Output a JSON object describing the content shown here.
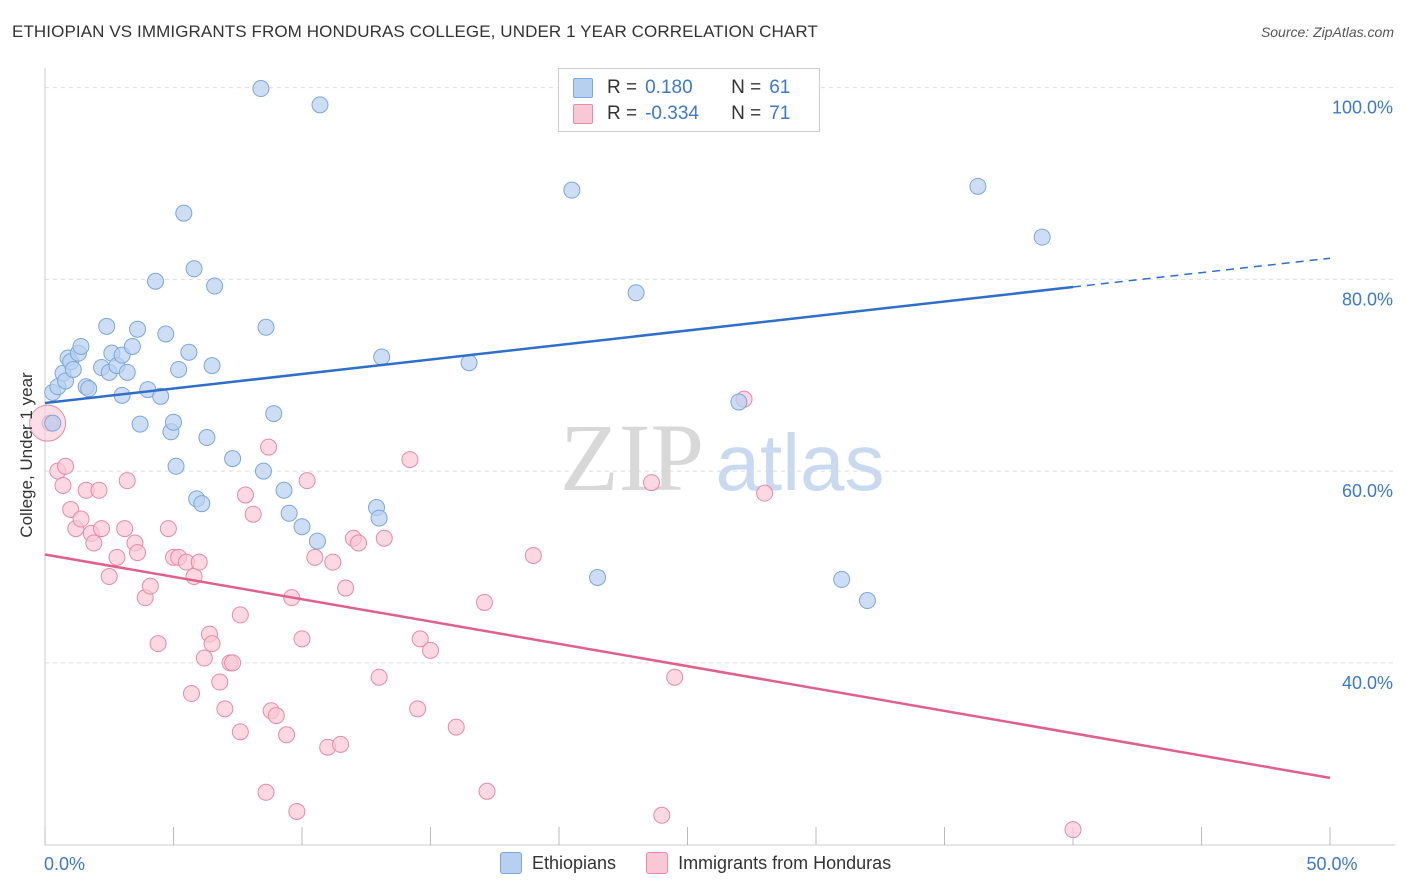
{
  "title": "ETHIOPIAN VS IMMIGRANTS FROM HONDURAS COLLEGE, UNDER 1 YEAR CORRELATION CHART",
  "source": "Source: ZipAtlas.com",
  "watermark": {
    "zip": "ZIP",
    "atlas": "atlas"
  },
  "colors": {
    "blue_fill": "#b8d0f0",
    "blue_stroke": "#7aa7de",
    "blue_line": "#2f6fca",
    "pink_fill": "#f9c8d6",
    "pink_stroke": "#e88aa8",
    "pink_line": "#e0608a",
    "axis_label": "#3b78d0",
    "grid": "#dddddd"
  },
  "legend": {
    "rows": [
      {
        "r_label": "R =",
        "r_value": "0.180",
        "n_label": "N =",
        "n_value": "61"
      },
      {
        "r_label": "R =",
        "r_value": "-0.334",
        "n_label": "N =",
        "n_value": "71"
      }
    ]
  },
  "bottom_legend": {
    "series1": "Ethiopians",
    "series2": "Immigrants from Honduras"
  },
  "chart_data": {
    "type": "scatter",
    "title": "ETHIOPIAN VS IMMIGRANTS FROM HONDURAS COLLEGE, UNDER 1 YEAR CORRELATION CHART",
    "xlabel": "",
    "ylabel": "College, Under 1 year",
    "xlim": [
      0,
      50
    ],
    "ylim": [
      21,
      101
    ],
    "x_tick_labels": [
      "0.0%",
      "50.0%"
    ],
    "y_ticks": [
      40,
      60,
      80,
      100
    ],
    "y_tick_labels": [
      "40.0%",
      "60.0%",
      "80.0%",
      "100.0%"
    ],
    "series": [
      {
        "name": "Ethiopians",
        "r": 0.18,
        "n": 61,
        "trend": {
          "x0": 0,
          "y0": 67.1,
          "x1": 40,
          "y1": 79.2,
          "dash_to_x": 50,
          "dash_to_y": 82.2
        },
        "points": [
          [
            0.3,
            65.0
          ],
          [
            0.3,
            68.2
          ],
          [
            0.5,
            68.8
          ],
          [
            0.7,
            70.2
          ],
          [
            0.8,
            69.4
          ],
          [
            0.9,
            71.8
          ],
          [
            1.0,
            71.4
          ],
          [
            1.1,
            70.6
          ],
          [
            1.3,
            72.3
          ],
          [
            1.4,
            73.0
          ],
          [
            1.6,
            68.8
          ],
          [
            1.7,
            68.6
          ],
          [
            2.2,
            70.8
          ],
          [
            2.4,
            75.1
          ],
          [
            2.5,
            70.3
          ],
          [
            2.6,
            72.3
          ],
          [
            2.8,
            71.0
          ],
          [
            3.0,
            72.1
          ],
          [
            3.0,
            67.9
          ],
          [
            3.2,
            70.3
          ],
          [
            3.4,
            73.0
          ],
          [
            3.6,
            74.8
          ],
          [
            3.7,
            64.9
          ],
          [
            4.0,
            68.5
          ],
          [
            4.3,
            79.8
          ],
          [
            4.5,
            67.8
          ],
          [
            4.7,
            74.3
          ],
          [
            4.9,
            64.1
          ],
          [
            5.0,
            65.1
          ],
          [
            5.1,
            60.5
          ],
          [
            5.2,
            70.6
          ],
          [
            5.4,
            86.9
          ],
          [
            5.6,
            72.4
          ],
          [
            5.8,
            81.1
          ],
          [
            5.9,
            57.1
          ],
          [
            6.1,
            56.6
          ],
          [
            6.3,
            63.5
          ],
          [
            6.5,
            71.0
          ],
          [
            6.6,
            79.3
          ],
          [
            7.3,
            61.3
          ],
          [
            8.5,
            60.0
          ],
          [
            8.6,
            75.0
          ],
          [
            8.9,
            66.0
          ],
          [
            9.3,
            58.0
          ],
          [
            9.5,
            55.6
          ],
          [
            10.0,
            54.2
          ],
          [
            10.6,
            52.7
          ],
          [
            10.7,
            98.2
          ],
          [
            12.9,
            56.2
          ],
          [
            13.0,
            55.1
          ],
          [
            13.1,
            71.9
          ],
          [
            16.5,
            71.3
          ],
          [
            20.5,
            89.3
          ],
          [
            21.5,
            48.9
          ],
          [
            23.0,
            78.6
          ],
          [
            27.0,
            67.2
          ],
          [
            31.0,
            48.7
          ],
          [
            32.0,
            46.5
          ],
          [
            36.3,
            89.7
          ],
          [
            38.8,
            84.4
          ],
          [
            8.4,
            99.9
          ]
        ]
      },
      {
        "name": "Immigrants from Honduras",
        "r": -0.334,
        "n": 71,
        "trend": {
          "x0": 0,
          "y0": 51.3,
          "x1": 50,
          "y1": 28.0
        },
        "points": [
          [
            0.2,
            65.0
          ],
          [
            0.5,
            60.0
          ],
          [
            0.7,
            58.5
          ],
          [
            0.8,
            60.5
          ],
          [
            1.0,
            56.0
          ],
          [
            1.2,
            54.0
          ],
          [
            1.4,
            55.0
          ],
          [
            1.6,
            58.0
          ],
          [
            1.8,
            53.5
          ],
          [
            1.9,
            52.5
          ],
          [
            2.1,
            58.0
          ],
          [
            2.2,
            54.0
          ],
          [
            2.5,
            49.0
          ],
          [
            2.8,
            51.0
          ],
          [
            3.1,
            54.0
          ],
          [
            3.2,
            59.0
          ],
          [
            3.5,
            52.5
          ],
          [
            3.6,
            51.5
          ],
          [
            3.9,
            46.8
          ],
          [
            4.1,
            48.0
          ],
          [
            4.4,
            42.0
          ],
          [
            4.8,
            54.0
          ],
          [
            5.0,
            51.0
          ],
          [
            5.2,
            51.0
          ],
          [
            5.5,
            50.5
          ],
          [
            5.7,
            36.8
          ],
          [
            5.8,
            49.0
          ],
          [
            6.0,
            50.5
          ],
          [
            6.2,
            40.5
          ],
          [
            6.4,
            43.0
          ],
          [
            6.5,
            42.0
          ],
          [
            6.8,
            38.0
          ],
          [
            7.0,
            35.2
          ],
          [
            7.2,
            40.0
          ],
          [
            7.3,
            40.0
          ],
          [
            7.6,
            32.8
          ],
          [
            7.8,
            57.5
          ],
          [
            8.1,
            55.5
          ],
          [
            8.6,
            26.5
          ],
          [
            8.7,
            62.5
          ],
          [
            8.8,
            35.0
          ],
          [
            9.0,
            34.5
          ],
          [
            9.4,
            32.5
          ],
          [
            9.6,
            46.8
          ],
          [
            9.8,
            24.5
          ],
          [
            10.0,
            42.5
          ],
          [
            10.2,
            59.0
          ],
          [
            10.5,
            51.0
          ],
          [
            11.0,
            31.2
          ],
          [
            11.2,
            50.5
          ],
          [
            11.5,
            31.5
          ],
          [
            11.7,
            47.8
          ],
          [
            12.0,
            53.0
          ],
          [
            12.2,
            52.5
          ],
          [
            13.0,
            38.5
          ],
          [
            13.2,
            53.0
          ],
          [
            14.2,
            61.2
          ],
          [
            14.5,
            35.2
          ],
          [
            14.6,
            42.5
          ],
          [
            15.0,
            41.3
          ],
          [
            16.0,
            33.3
          ],
          [
            17.1,
            46.3
          ],
          [
            17.2,
            26.6
          ],
          [
            19.0,
            51.2
          ],
          [
            23.6,
            58.8
          ],
          [
            24.0,
            24.1
          ],
          [
            24.5,
            38.5
          ],
          [
            27.2,
            67.5
          ],
          [
            28.0,
            57.7
          ],
          [
            40.0,
            22.6
          ],
          [
            7.6,
            45.0
          ]
        ]
      }
    ]
  }
}
